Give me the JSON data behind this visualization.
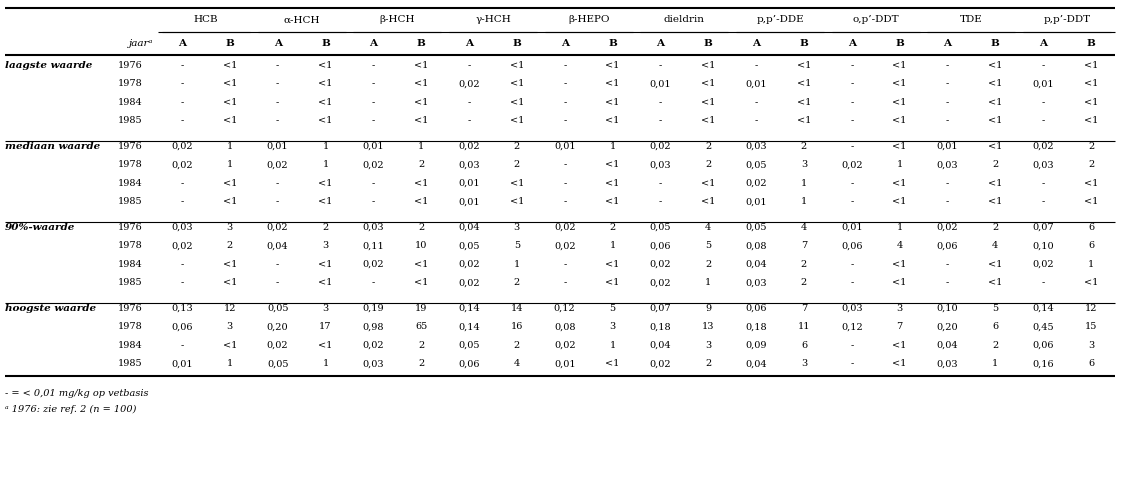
{
  "top_headers": [
    "HCB",
    "α-HCH",
    "β-HCH",
    "γ-HCH",
    "β-HEPO",
    "dieldrin",
    "p,p’-DDE",
    "o,p’-DDT",
    "TDE",
    "p,p’-DDT"
  ],
  "sub_col_label": "jaarᵃ",
  "sub_cols": [
    "A",
    "B",
    "A",
    "B",
    "A",
    "B",
    "A",
    "B",
    "A",
    "B",
    "A",
    "B",
    "A",
    "B",
    "A",
    "B",
    "A",
    "B",
    "A",
    "B"
  ],
  "row_groups": [
    {
      "group_label": "laagste waarde",
      "rows": [
        {
          "jaar": "1976",
          "vals": [
            "-",
            "<1",
            "-",
            "<1",
            "-",
            "<1",
            "-",
            "<1",
            "-",
            "<1",
            "-",
            "<1",
            "-",
            "<1",
            "-",
            "<1",
            "-",
            "<1",
            "-",
            "<1"
          ]
        },
        {
          "jaar": "1978",
          "vals": [
            "-",
            "<1",
            "-",
            "<1",
            "-",
            "<1",
            "0,02",
            "<1",
            "-",
            "<1",
            "0,01",
            "<1",
            "0,01",
            "<1",
            "-",
            "<1",
            "-",
            "<1",
            "0,01",
            "<1"
          ]
        },
        {
          "jaar": "1984",
          "vals": [
            "-",
            "<1",
            "-",
            "<1",
            "-",
            "<1",
            "-",
            "<1",
            "-",
            "<1",
            "-",
            "<1",
            "-",
            "<1",
            "-",
            "<1",
            "-",
            "<1",
            "-",
            "<1"
          ]
        },
        {
          "jaar": "1985",
          "vals": [
            "-",
            "<1",
            "-",
            "<1",
            "-",
            "<1",
            "-",
            "<1",
            "-",
            "<1",
            "-",
            "<1",
            "-",
            "<1",
            "-",
            "<1",
            "-",
            "<1",
            "-",
            "<1"
          ]
        }
      ]
    },
    {
      "group_label": "mediaan waarde",
      "rows": [
        {
          "jaar": "1976",
          "vals": [
            "0,02",
            "1",
            "0,01",
            "1",
            "0,01",
            "1",
            "0,02",
            "2",
            "0,01",
            "1",
            "0,02",
            "2",
            "0,03",
            "2",
            "-",
            "<1",
            "0,01",
            "<1",
            "0,02",
            "2"
          ]
        },
        {
          "jaar": "1978",
          "vals": [
            "0,02",
            "1",
            "0,02",
            "1",
            "0,02",
            "2",
            "0,03",
            "2",
            "-",
            "<1",
            "0,03",
            "2",
            "0,05",
            "3",
            "0,02",
            "1",
            "0,03",
            "2",
            "0,03",
            "2"
          ]
        },
        {
          "jaar": "1984",
          "vals": [
            "-",
            "<1",
            "-",
            "<1",
            "-",
            "<1",
            "0,01",
            "<1",
            "-",
            "<1",
            "-",
            "<1",
            "0,02",
            "1",
            "-",
            "<1",
            "-",
            "<1",
            "-",
            "<1"
          ]
        },
        {
          "jaar": "1985",
          "vals": [
            "-",
            "<1",
            "-",
            "<1",
            "-",
            "<1",
            "0,01",
            "<1",
            "-",
            "<1",
            "-",
            "<1",
            "0,01",
            "1",
            "-",
            "<1",
            "-",
            "<1",
            "-",
            "<1"
          ]
        }
      ]
    },
    {
      "group_label": "90%-waarde",
      "rows": [
        {
          "jaar": "1976",
          "vals": [
            "0,03",
            "3",
            "0,02",
            "2",
            "0,03",
            "2",
            "0,04",
            "3",
            "0,02",
            "2",
            "0,05",
            "4",
            "0,05",
            "4",
            "0,01",
            "1",
            "0,02",
            "2",
            "0,07",
            "6"
          ]
        },
        {
          "jaar": "1978",
          "vals": [
            "0,02",
            "2",
            "0,04",
            "3",
            "0,11",
            "10",
            "0,05",
            "5",
            "0,02",
            "1",
            "0,06",
            "5",
            "0,08",
            "7",
            "0,06",
            "4",
            "0,06",
            "4",
            "0,10",
            "6"
          ]
        },
        {
          "jaar": "1984",
          "vals": [
            "-",
            "<1",
            "-",
            "<1",
            "0,02",
            "<1",
            "0,02",
            "1",
            "-",
            "<1",
            "0,02",
            "2",
            "0,04",
            "2",
            "-",
            "<1",
            "-",
            "<1",
            "0,02",
            "1"
          ]
        },
        {
          "jaar": "1985",
          "vals": [
            "-",
            "<1",
            "-",
            "<1",
            "-",
            "<1",
            "0,02",
            "2",
            "-",
            "<1",
            "0,02",
            "1",
            "0,03",
            "2",
            "-",
            "<1",
            "-",
            "<1",
            "-",
            "<1"
          ]
        }
      ]
    },
    {
      "group_label": "hoogste waarde",
      "rows": [
        {
          "jaar": "1976",
          "vals": [
            "0,13",
            "12",
            "0,05",
            "3",
            "0,19",
            "19",
            "0,14",
            "14",
            "0,12",
            "5",
            "0,07",
            "9",
            "0,06",
            "7",
            "0,03",
            "3",
            "0,10",
            "5",
            "0,14",
            "12"
          ]
        },
        {
          "jaar": "1978",
          "vals": [
            "0,06",
            "3",
            "0,20",
            "17",
            "0,98",
            "65",
            "0,14",
            "16",
            "0,08",
            "3",
            "0,18",
            "13",
            "0,18",
            "11",
            "0,12",
            "7",
            "0,20",
            "6",
            "0,45",
            "15"
          ]
        },
        {
          "jaar": "1984",
          "vals": [
            "-",
            "<1",
            "0,02",
            "<1",
            "0,02",
            "2",
            "0,05",
            "2",
            "0,02",
            "1",
            "0,04",
            "3",
            "0,09",
            "6",
            "-",
            "<1",
            "0,04",
            "2",
            "0,06",
            "3"
          ]
        },
        {
          "jaar": "1985",
          "vals": [
            "0,01",
            "1",
            "0,05",
            "1",
            "0,03",
            "2",
            "0,06",
            "4",
            "0,01",
            "<1",
            "0,02",
            "2",
            "0,04",
            "3",
            "-",
            "<1",
            "0,03",
            "1",
            "0,16",
            "6"
          ]
        }
      ]
    }
  ],
  "footnote1": "- = < 0,01 mg/kg op vetbasis",
  "footnote2": "ᵃ 1976: zie ref. 2 (n = 100)"
}
